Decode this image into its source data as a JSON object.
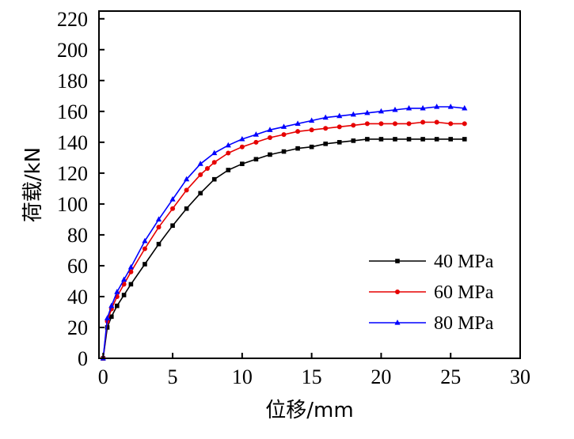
{
  "chart_data": {
    "type": "line",
    "title": "",
    "xlabel": "位移/mm",
    "ylabel": "荷载/kN",
    "xlim": [
      -0.3,
      30
    ],
    "ylim": [
      0,
      225
    ],
    "xticks": [
      0,
      5,
      10,
      15,
      20,
      25,
      30
    ],
    "yticks": [
      0,
      20,
      40,
      60,
      80,
      100,
      120,
      140,
      160,
      180,
      200,
      220
    ],
    "grid": false,
    "legend_position": "bottom-right",
    "series": [
      {
        "name": "40 MPa",
        "color": "#000000",
        "marker": "square",
        "x": [
          0,
          0.3,
          0.6,
          1.0,
          1.5,
          2.0,
          3.0,
          4.0,
          5.0,
          6.0,
          7.0,
          8.0,
          9.0,
          10.0,
          11.0,
          12.0,
          13.0,
          14.0,
          15.0,
          16.0,
          17.0,
          18.0,
          19.0,
          20.0,
          21.0,
          22.0,
          23.0,
          24.0,
          25.0,
          26.0
        ],
        "y": [
          0,
          20,
          27,
          34,
          41,
          48,
          61,
          74,
          86,
          97,
          107,
          116,
          122,
          126,
          129,
          132,
          134,
          136,
          137,
          139,
          140,
          141,
          142,
          142,
          142,
          142,
          142,
          142,
          142,
          142
        ]
      },
      {
        "name": "60 MPa",
        "color": "#e60000",
        "marker": "circle",
        "x": [
          0,
          0.3,
          0.6,
          1.0,
          1.5,
          2.0,
          3.0,
          4.0,
          5.0,
          6.0,
          7.0,
          7.5,
          8.0,
          9.0,
          10.0,
          11.0,
          12.0,
          13.0,
          14.0,
          15.0,
          16.0,
          17.0,
          18.0,
          19.0,
          20.0,
          21.0,
          22.0,
          23.0,
          24.0,
          25.0,
          26.0
        ],
        "y": [
          0,
          24,
          32,
          40,
          48,
          56,
          71,
          85,
          97,
          109,
          119,
          123,
          127,
          133,
          137,
          140,
          143,
          145,
          147,
          148,
          149,
          150,
          151,
          152,
          152,
          152,
          152,
          153,
          153,
          152,
          152
        ]
      },
      {
        "name": "80 MPa",
        "color": "#0000ff",
        "marker": "triangle",
        "x": [
          0,
          0.3,
          0.6,
          1.0,
          1.5,
          2.0,
          3.0,
          4.0,
          5.0,
          6.0,
          7.0,
          8.0,
          9.0,
          10.0,
          11.0,
          12.0,
          13.0,
          14.0,
          15.0,
          16.0,
          17.0,
          18.0,
          19.0,
          20.0,
          21.0,
          22.0,
          23.0,
          24.0,
          25.0,
          26.0
        ],
        "y": [
          0,
          26,
          34,
          43,
          51,
          59,
          76,
          90,
          103,
          116,
          126,
          133,
          138,
          142,
          145,
          148,
          150,
          152,
          154,
          156,
          157,
          158,
          159,
          160,
          161,
          162,
          162,
          163,
          163,
          162
        ]
      }
    ]
  }
}
